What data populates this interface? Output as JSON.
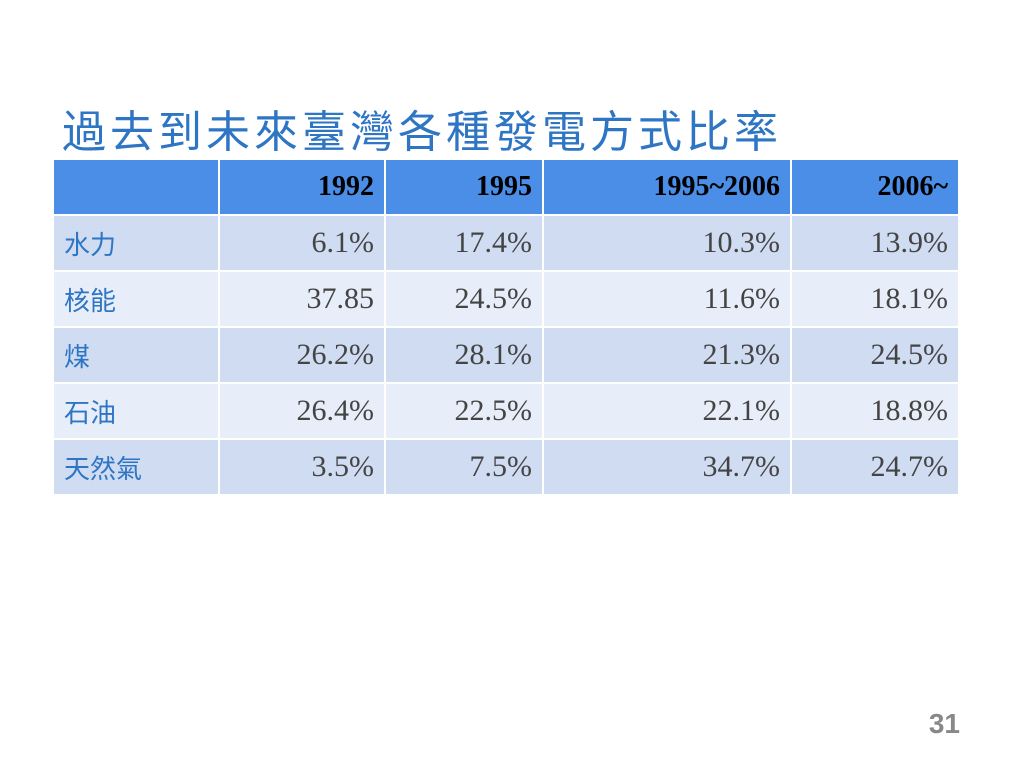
{
  "title": "過去到未來臺灣各種發電方式比率",
  "table": {
    "header": [
      "",
      "1992",
      "1995",
      "1995~2006",
      "2006~"
    ],
    "rows": [
      [
        "水力",
        "6.1%",
        "17.4%",
        "10.3%",
        "13.9%"
      ],
      [
        "核能",
        "37.85",
        "24.5%",
        "11.6%",
        "18.1%"
      ],
      [
        "煤",
        "26.2%",
        "28.1%",
        "21.3%",
        "24.5%"
      ],
      [
        "石油",
        "26.4%",
        "22.5%",
        "22.1%",
        "18.8%"
      ],
      [
        "天然氣",
        "3.5%",
        "7.5%",
        "34.7%",
        "24.7%"
      ]
    ]
  },
  "page_number": "31"
}
